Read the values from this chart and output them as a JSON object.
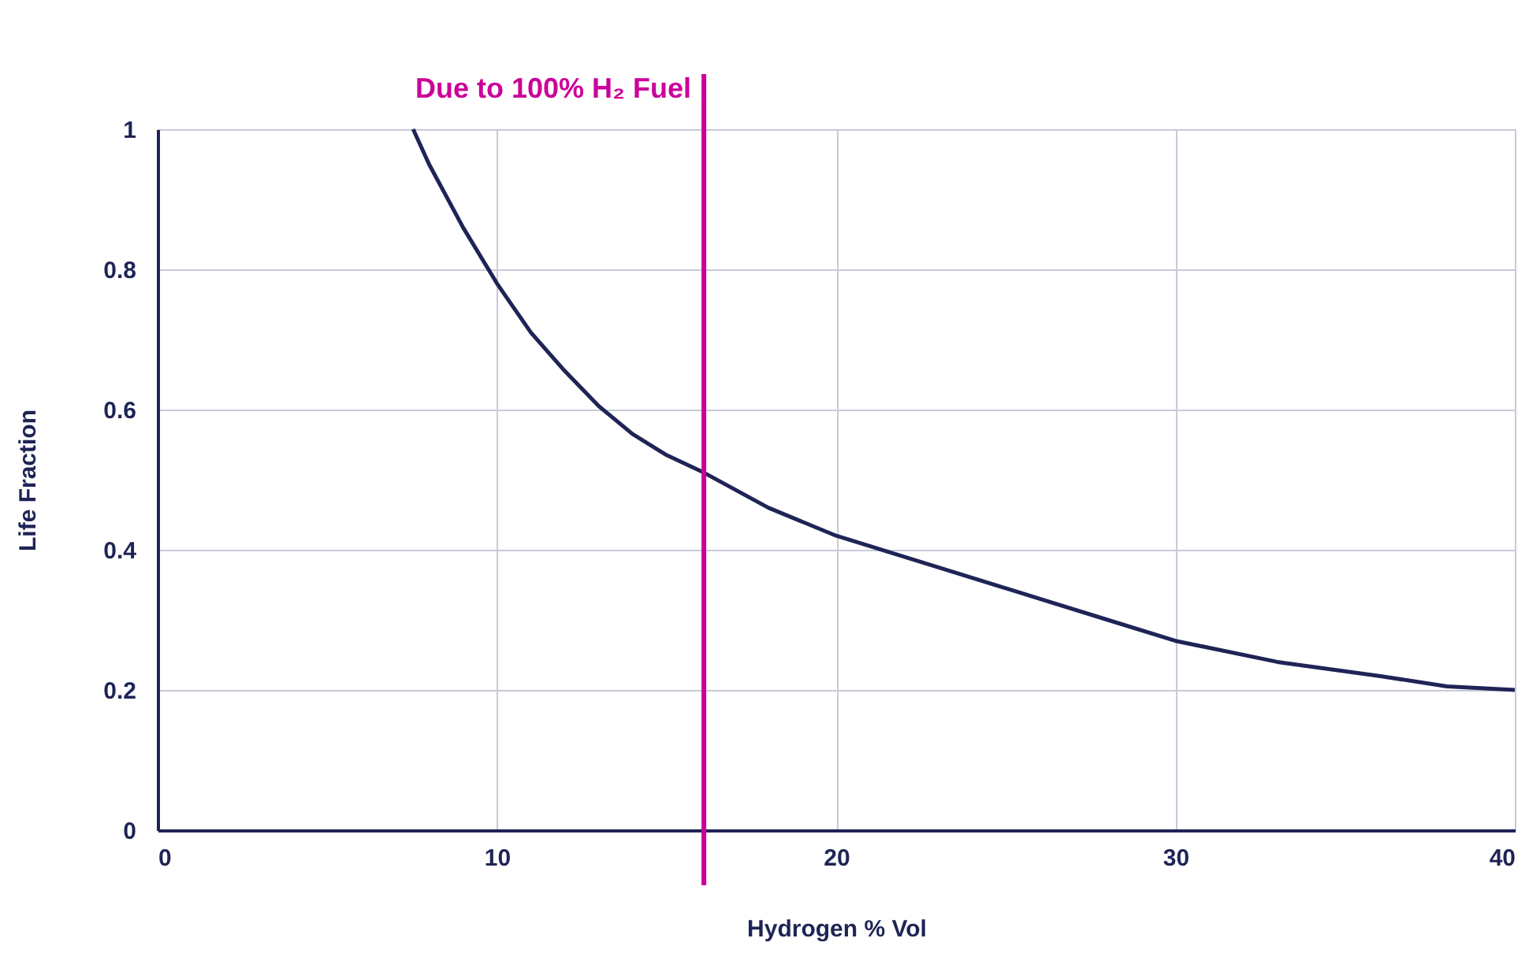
{
  "chart_data": {
    "type": "line",
    "xlabel": "Hydrogen % Vol",
    "ylabel": "Life Fraction",
    "x": [
      7.53,
      8,
      9,
      10,
      11,
      12,
      13,
      14,
      15,
      16.1,
      18,
      20,
      22,
      25,
      28,
      30,
      33,
      36,
      38,
      40
    ],
    "series": [
      {
        "color": "#1f2456",
        "values": [
          1,
          0.95,
          0.86,
          0.78,
          0.71,
          0.655,
          0.605,
          0.565,
          0.535,
          0.51,
          0.46,
          0.42,
          0.39,
          0.345,
          0.3,
          0.27,
          0.24,
          0.22,
          0.205,
          0.2
        ]
      }
    ],
    "xlim": [
      0,
      40
    ],
    "xticks": [
      0,
      10,
      20,
      30,
      40
    ],
    "ylim": [
      0,
      1
    ],
    "yticks": [
      0,
      0.2,
      0.4,
      0.6,
      0.8,
      1
    ],
    "grid": true,
    "marker": "none",
    "line_style": "solid",
    "ref_lines": [
      {
        "axis": "x",
        "value": 16.1,
        "label": "Due to 100% H₂ Fuel",
        "color": "#cc0099"
      }
    ]
  }
}
